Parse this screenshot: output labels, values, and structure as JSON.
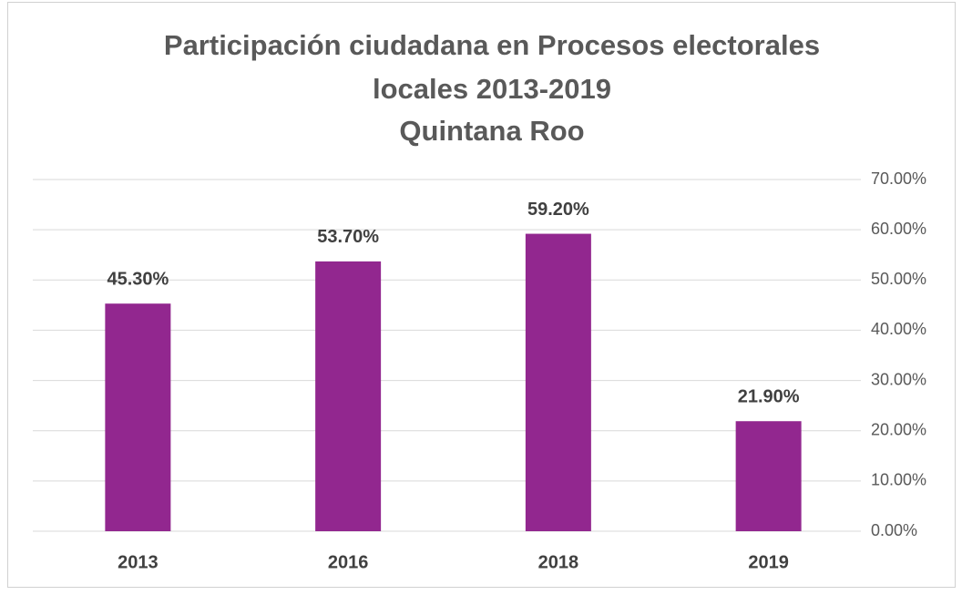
{
  "chart_data": {
    "type": "bar",
    "title": [
      "Participación ciudadana en Procesos electorales",
      "locales 2013-2019",
      "Quintana Roo"
    ],
    "categories": [
      "2013",
      "2016",
      "2018",
      "2019"
    ],
    "values": [
      45.3,
      53.7,
      59.2,
      21.9
    ],
    "value_labels": [
      "45.30%",
      "53.70%",
      "59.20%",
      "21.90%"
    ],
    "color": "#92278f",
    "ylim": [
      0,
      70
    ],
    "yticks": [
      {
        "value": 0,
        "label": "0.00%"
      },
      {
        "value": 10,
        "label": "10.00%"
      },
      {
        "value": 20,
        "label": "20.00%"
      },
      {
        "value": 30,
        "label": "30.00%"
      },
      {
        "value": 40,
        "label": "40.00%"
      },
      {
        "value": 50,
        "label": "50.00%"
      },
      {
        "value": 60,
        "label": "60.00%"
      },
      {
        "value": 70,
        "label": "70.00%"
      }
    ],
    "grid": true,
    "y_axis_side": "right"
  }
}
